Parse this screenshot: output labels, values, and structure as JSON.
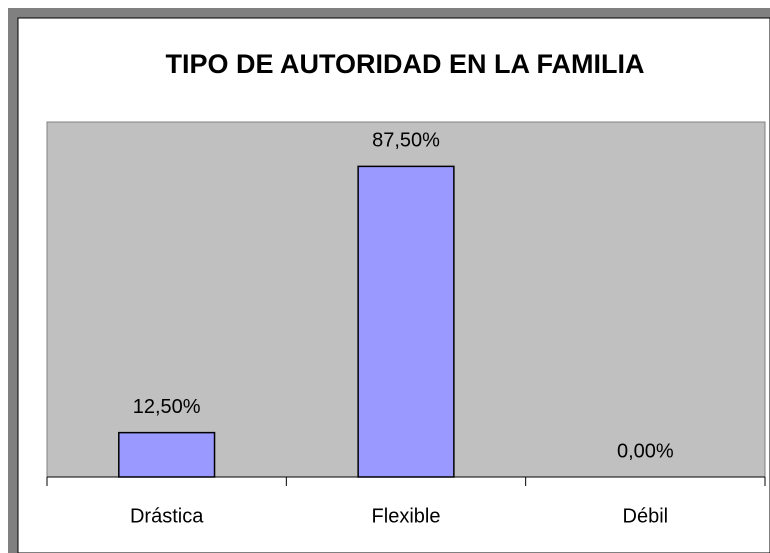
{
  "chart_data": {
    "type": "bar",
    "title": "TIPO DE AUTORIDAD EN LA FAMILIA",
    "categories": [
      "Drástica",
      "Flexible",
      "Débil"
    ],
    "values": [
      12.5,
      87.5,
      0
    ],
    "value_labels": [
      "12,50%",
      "87,50%",
      "0,00%"
    ],
    "color": "#9999ff",
    "ylim": [
      0,
      100
    ]
  }
}
